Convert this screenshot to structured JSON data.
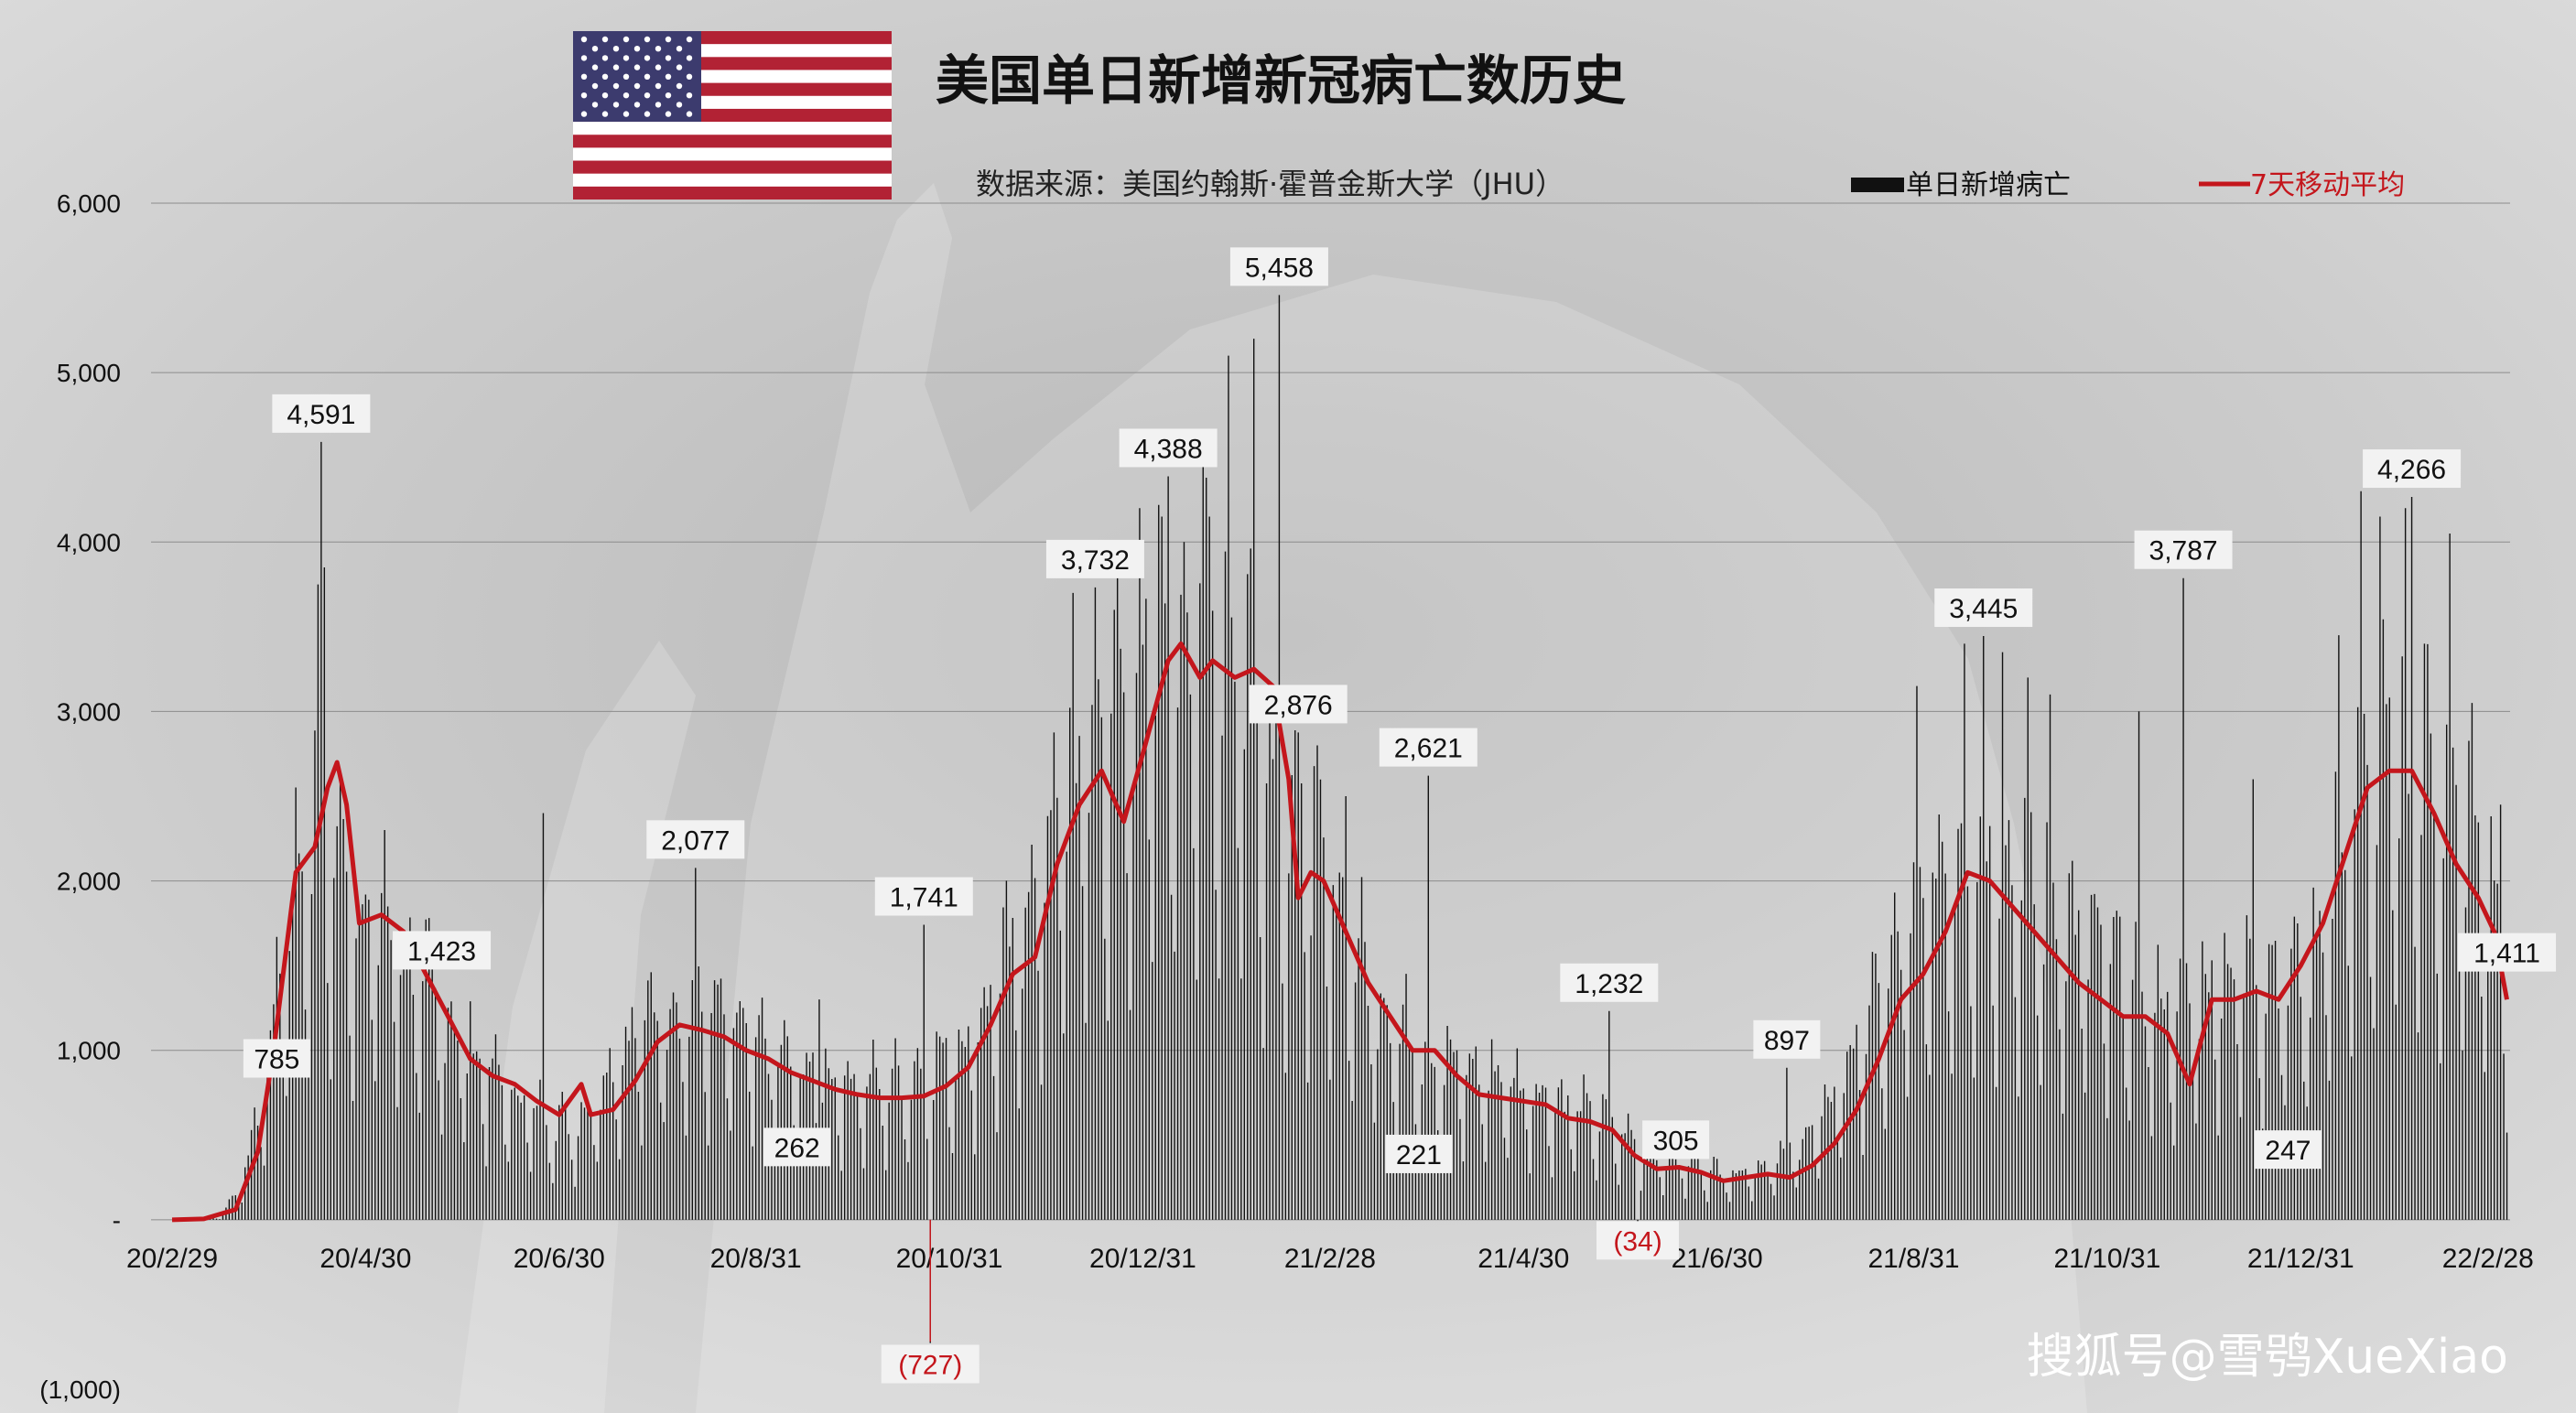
{
  "title": "美国单日新增新冠病亡数历史",
  "source": "数据来源：美国约翰斯·霍普金斯大学（JHU）",
  "watermark": "搜狐号@雪鸮XueXiao",
  "colors": {
    "background": "#cfcfcf",
    "bars": "#111111",
    "line": "#c4161c",
    "negative_label": "#c4161c",
    "label_box": "#f2f2f2",
    "flag_red": "#b22234",
    "flag_blue": "#3c3b6e"
  },
  "chart_data": {
    "type": "bar",
    "x_start": "2020-02-29",
    "x_end": "2022-03-07",
    "ylim": [
      -1000,
      6000
    ],
    "y_ticks": [
      {
        "value": 6000,
        "label": "6,000"
      },
      {
        "value": 5000,
        "label": "5,000"
      },
      {
        "value": 4000,
        "label": "4,000"
      },
      {
        "value": 3000,
        "label": "3,000"
      },
      {
        "value": 2000,
        "label": "2,000"
      },
      {
        "value": 1000,
        "label": "1,000"
      },
      {
        "value": 0,
        "label": "-"
      },
      {
        "value": -1000,
        "label": "(1,000)"
      }
    ],
    "x_ticks": [
      {
        "date": "2020-02-29",
        "label": "20/2/29"
      },
      {
        "date": "2020-04-30",
        "label": "20/4/30"
      },
      {
        "date": "2020-06-30",
        "label": "20/6/30"
      },
      {
        "date": "2020-08-31",
        "label": "20/8/31"
      },
      {
        "date": "2020-10-31",
        "label": "20/10/31"
      },
      {
        "date": "2020-12-31",
        "label": "20/12/31"
      },
      {
        "date": "2021-02-28",
        "label": "21/2/28"
      },
      {
        "date": "2021-04-30",
        "label": "21/4/30"
      },
      {
        "date": "2021-06-30",
        "label": "21/6/30"
      },
      {
        "date": "2021-08-31",
        "label": "21/8/31"
      },
      {
        "date": "2021-10-31",
        "label": "21/10/31"
      },
      {
        "date": "2021-12-31",
        "label": "21/12/31"
      },
      {
        "date": "2022-02-28",
        "label": "22/2/28"
      }
    ],
    "series": [
      {
        "name": "单日新增病亡",
        "kind": "bar",
        "envelope": [
          [
            "2020-02-29",
            0
          ],
          [
            "2020-03-15",
            10
          ],
          [
            "2020-03-22",
            200
          ],
          [
            "2020-03-29",
            700
          ],
          [
            "2020-04-05",
            1600
          ],
          [
            "2020-04-12",
            2100
          ],
          [
            "2020-04-19",
            2000
          ],
          [
            "2020-04-26",
            1700
          ],
          [
            "2020-05-10",
            1500
          ],
          [
            "2020-05-24",
            1100
          ],
          [
            "2020-06-07",
            800
          ],
          [
            "2020-06-21",
            600
          ],
          [
            "2020-07-05",
            500
          ],
          [
            "2020-07-19",
            900
          ],
          [
            "2020-08-02",
            1150
          ],
          [
            "2020-08-16",
            1100
          ],
          [
            "2020-08-30",
            950
          ],
          [
            "2020-09-13",
            800
          ],
          [
            "2020-09-27",
            750
          ],
          [
            "2020-10-11",
            720
          ],
          [
            "2020-10-25",
            800
          ],
          [
            "2020-11-08",
            1000
          ],
          [
            "2020-11-22",
            1500
          ],
          [
            "2020-12-06",
            2300
          ],
          [
            "2020-12-20",
            2700
          ],
          [
            "2021-01-03",
            3000
          ],
          [
            "2021-01-17",
            3300
          ],
          [
            "2021-01-31",
            3100
          ],
          [
            "2021-02-14",
            2200
          ],
          [
            "2021-02-28",
            1800
          ],
          [
            "2021-03-14",
            1200
          ],
          [
            "2021-03-28",
            900
          ],
          [
            "2021-04-11",
            800
          ],
          [
            "2021-04-25",
            750
          ],
          [
            "2021-05-09",
            650
          ],
          [
            "2021-05-23",
            550
          ],
          [
            "2021-06-06",
            400
          ],
          [
            "2021-06-20",
            300
          ],
          [
            "2021-07-04",
            250
          ],
          [
            "2021-07-18",
            300
          ],
          [
            "2021-08-01",
            500
          ],
          [
            "2021-08-15",
            1000
          ],
          [
            "2021-08-29",
            1500
          ],
          [
            "2021-09-12",
            2000
          ],
          [
            "2021-09-26",
            2000
          ],
          [
            "2021-10-10",
            1700
          ],
          [
            "2021-10-24",
            1500
          ],
          [
            "2021-11-07",
            1250
          ],
          [
            "2021-11-21",
            1100
          ],
          [
            "2021-12-05",
            1300
          ],
          [
            "2021-12-19",
            1350
          ],
          [
            "2022-01-02",
            1300
          ],
          [
            "2022-01-16",
            2200
          ],
          [
            "2022-01-30",
            2500
          ],
          [
            "2022-02-13",
            2300
          ],
          [
            "2022-02-27",
            1900
          ],
          [
            "2022-03-06",
            1300
          ]
        ],
        "spikes": [
          [
            "2020-04-15",
            3750
          ],
          [
            "2020-04-16",
            4591
          ],
          [
            "2020-04-17",
            3850
          ],
          [
            "2020-04-22",
            2600
          ],
          [
            "2020-05-06",
            2300
          ],
          [
            "2020-06-25",
            2400
          ],
          [
            "2020-08-12",
            2077
          ],
          [
            "2020-09-20",
            1300
          ],
          [
            "2020-10-23",
            1741
          ],
          [
            "2020-12-09",
            3700
          ],
          [
            "2020-12-16",
            3732
          ],
          [
            "2020-12-22",
            3600
          ],
          [
            "2020-12-30",
            4200
          ],
          [
            "2021-01-06",
            4150
          ],
          [
            "2021-01-08",
            4388
          ],
          [
            "2021-01-13",
            4000
          ],
          [
            "2021-01-21",
            4150
          ],
          [
            "2021-01-27",
            5100
          ],
          [
            "2021-02-04",
            5200
          ],
          [
            "2021-02-12",
            5458
          ],
          [
            "2021-02-18",
            2876
          ],
          [
            "2021-02-24",
            2800
          ],
          [
            "2021-03-05",
            2500
          ],
          [
            "2021-03-31",
            2621
          ],
          [
            "2021-05-27",
            1232
          ],
          [
            "2021-07-22",
            897
          ],
          [
            "2021-09-01",
            3150
          ],
          [
            "2021-09-16",
            3400
          ],
          [
            "2021-09-22",
            3445
          ],
          [
            "2021-09-28",
            3350
          ],
          [
            "2021-10-06",
            3200
          ],
          [
            "2021-10-13",
            3100
          ],
          [
            "2021-11-10",
            3000
          ],
          [
            "2021-11-24",
            3787
          ],
          [
            "2021-12-16",
            2600
          ],
          [
            "2022-01-12",
            3450
          ],
          [
            "2022-01-19",
            4300
          ],
          [
            "2022-01-25",
            4150
          ],
          [
            "2022-02-02",
            4200
          ],
          [
            "2022-02-04",
            4266
          ],
          [
            "2022-02-08",
            3400
          ],
          [
            "2022-02-16",
            4050
          ],
          [
            "2022-02-23",
            3050
          ],
          [
            "2022-03-04",
            2450
          ]
        ],
        "dips": [
          [
            "2020-10-25",
            -727
          ],
          [
            "2021-06-05",
            -34
          ]
        ]
      },
      {
        "name": "7天移动平均",
        "kind": "line",
        "points": [
          [
            "2020-02-29",
            0
          ],
          [
            "2020-03-10",
            5
          ],
          [
            "2020-03-20",
            60
          ],
          [
            "2020-03-27",
            400
          ],
          [
            "2020-04-01",
            1000
          ],
          [
            "2020-04-05",
            1600
          ],
          [
            "2020-04-08",
            2050
          ],
          [
            "2020-04-14",
            2200
          ],
          [
            "2020-04-18",
            2550
          ],
          [
            "2020-04-21",
            2700
          ],
          [
            "2020-04-24",
            2450
          ],
          [
            "2020-04-28",
            1750
          ],
          [
            "2020-05-05",
            1800
          ],
          [
            "2020-05-12",
            1700
          ],
          [
            "2020-05-19",
            1450
          ],
          [
            "2020-05-26",
            1200
          ],
          [
            "2020-06-02",
            950
          ],
          [
            "2020-06-09",
            850
          ],
          [
            "2020-06-16",
            800
          ],
          [
            "2020-06-23",
            700
          ],
          [
            "2020-06-30",
            620
          ],
          [
            "2020-07-07",
            800
          ],
          [
            "2020-07-10",
            620
          ],
          [
            "2020-07-17",
            650
          ],
          [
            "2020-07-24",
            820
          ],
          [
            "2020-07-31",
            1050
          ],
          [
            "2020-08-07",
            1150
          ],
          [
            "2020-08-14",
            1120
          ],
          [
            "2020-08-21",
            1080
          ],
          [
            "2020-08-28",
            1000
          ],
          [
            "2020-09-04",
            950
          ],
          [
            "2020-09-11",
            870
          ],
          [
            "2020-09-18",
            820
          ],
          [
            "2020-09-25",
            770
          ],
          [
            "2020-10-02",
            740
          ],
          [
            "2020-10-09",
            720
          ],
          [
            "2020-10-16",
            720
          ],
          [
            "2020-10-23",
            730
          ],
          [
            "2020-10-30",
            790
          ],
          [
            "2020-11-06",
            900
          ],
          [
            "2020-11-13",
            1150
          ],
          [
            "2020-11-20",
            1450
          ],
          [
            "2020-11-27",
            1550
          ],
          [
            "2020-12-04",
            2100
          ],
          [
            "2020-12-11",
            2450
          ],
          [
            "2020-12-18",
            2650
          ],
          [
            "2020-12-25",
            2350
          ],
          [
            "2020-12-31",
            2750
          ],
          [
            "2021-01-08",
            3300
          ],
          [
            "2021-01-12",
            3400
          ],
          [
            "2021-01-18",
            3200
          ],
          [
            "2021-01-22",
            3300
          ],
          [
            "2021-01-29",
            3200
          ],
          [
            "2021-02-04",
            3250
          ],
          [
            "2021-02-10",
            3150
          ],
          [
            "2021-02-15",
            2600
          ],
          [
            "2021-02-18",
            1900
          ],
          [
            "2021-02-22",
            2050
          ],
          [
            "2021-02-26",
            2000
          ],
          [
            "2021-03-05",
            1700
          ],
          [
            "2021-03-12",
            1400
          ],
          [
            "2021-03-19",
            1200
          ],
          [
            "2021-03-26",
            1000
          ],
          [
            "2021-04-02",
            1000
          ],
          [
            "2021-04-09",
            850
          ],
          [
            "2021-04-16",
            740
          ],
          [
            "2021-04-23",
            720
          ],
          [
            "2021-04-30",
            700
          ],
          [
            "2021-05-07",
            680
          ],
          [
            "2021-05-14",
            600
          ],
          [
            "2021-05-21",
            580
          ],
          [
            "2021-05-28",
            530
          ],
          [
            "2021-06-04",
            380
          ],
          [
            "2021-06-11",
            300
          ],
          [
            "2021-06-18",
            310
          ],
          [
            "2021-06-25",
            280
          ],
          [
            "2021-07-02",
            230
          ],
          [
            "2021-07-09",
            250
          ],
          [
            "2021-07-16",
            270
          ],
          [
            "2021-07-23",
            250
          ],
          [
            "2021-07-30",
            320
          ],
          [
            "2021-08-06",
            450
          ],
          [
            "2021-08-13",
            650
          ],
          [
            "2021-08-20",
            950
          ],
          [
            "2021-08-27",
            1300
          ],
          [
            "2021-09-03",
            1450
          ],
          [
            "2021-09-10",
            1700
          ],
          [
            "2021-09-17",
            2050
          ],
          [
            "2021-09-24",
            2000
          ],
          [
            "2021-10-01",
            1850
          ],
          [
            "2021-10-08",
            1700
          ],
          [
            "2021-10-15",
            1550
          ],
          [
            "2021-10-22",
            1400
          ],
          [
            "2021-10-29",
            1300
          ],
          [
            "2021-11-05",
            1200
          ],
          [
            "2021-11-12",
            1200
          ],
          [
            "2021-11-19",
            1100
          ],
          [
            "2021-11-26",
            800
          ],
          [
            "2021-12-03",
            1300
          ],
          [
            "2021-12-10",
            1300
          ],
          [
            "2021-12-17",
            1350
          ],
          [
            "2021-12-24",
            1300
          ],
          [
            "2021-12-31",
            1500
          ],
          [
            "2022-01-07",
            1750
          ],
          [
            "2022-01-14",
            2150
          ],
          [
            "2022-01-21",
            2550
          ],
          [
            "2022-01-28",
            2650
          ],
          [
            "2022-02-04",
            2650
          ],
          [
            "2022-02-11",
            2400
          ],
          [
            "2022-02-18",
            2100
          ],
          [
            "2022-02-25",
            1900
          ],
          [
            "2022-03-02",
            1700
          ],
          [
            "2022-03-06",
            1300
          ]
        ]
      }
    ],
    "annotations": [
      {
        "date": "2020-04-16",
        "value": 4591,
        "label": "4,591"
      },
      {
        "date": "2020-04-02",
        "value": 785,
        "label": "785"
      },
      {
        "date": "2020-05-24",
        "value": 1423,
        "label": "1,423"
      },
      {
        "date": "2020-08-12",
        "value": 2077,
        "label": "2,077"
      },
      {
        "date": "2020-09-13",
        "value": 262,
        "label": "262"
      },
      {
        "date": "2020-10-23",
        "value": 1741,
        "label": "1,741"
      },
      {
        "date": "2020-10-25",
        "value": -727,
        "label": "(727)",
        "negative": true
      },
      {
        "date": "2020-12-16",
        "value": 3732,
        "label": "3,732"
      },
      {
        "date": "2021-01-08",
        "value": 4388,
        "label": "4,388"
      },
      {
        "date": "2021-02-12",
        "value": 5458,
        "label": "5,458"
      },
      {
        "date": "2021-02-18",
        "value": 2876,
        "label": "2,876"
      },
      {
        "date": "2021-03-31",
        "value": 2621,
        "label": "2,621"
      },
      {
        "date": "2021-03-28",
        "value": 221,
        "label": "221"
      },
      {
        "date": "2021-05-27",
        "value": 1232,
        "label": "1,232"
      },
      {
        "date": "2021-06-05",
        "value": -34,
        "label": "(34)",
        "negative": true
      },
      {
        "date": "2021-06-17",
        "value": 305,
        "label": "305"
      },
      {
        "date": "2021-07-22",
        "value": 897,
        "label": "897"
      },
      {
        "date": "2021-09-22",
        "value": 3445,
        "label": "3,445"
      },
      {
        "date": "2021-11-24",
        "value": 3787,
        "label": "3,787"
      },
      {
        "date": "2021-12-27",
        "value": 247,
        "label": "247"
      },
      {
        "date": "2022-02-04",
        "value": 4266,
        "label": "4,266"
      },
      {
        "date": "2022-03-06",
        "value": 1411,
        "label": "1,411"
      }
    ],
    "legend_placement": "top-right",
    "grid": true
  }
}
